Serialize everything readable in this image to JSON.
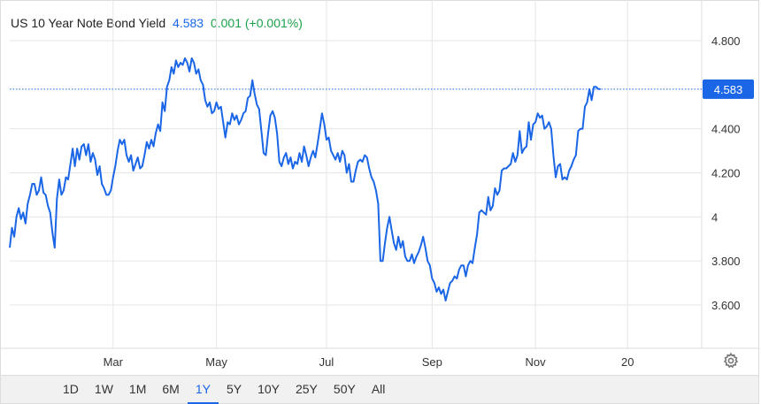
{
  "header": {
    "title": "US 10 Year Note Bond Yield",
    "last": "4.583",
    "change": "0.001 (+0.001%)"
  },
  "colors": {
    "line": "#1a66e6",
    "change_positive": "#1aa14a",
    "grid": "#e6e6e6",
    "badge": "#1a66e6"
  },
  "range_buttons": [
    {
      "label": "1D",
      "active": false
    },
    {
      "label": "1W",
      "active": false
    },
    {
      "label": "1M",
      "active": false
    },
    {
      "label": "6M",
      "active": false
    },
    {
      "label": "1Y",
      "active": true
    },
    {
      "label": "5Y",
      "active": false
    },
    {
      "label": "10Y",
      "active": false
    },
    {
      "label": "25Y",
      "active": false
    },
    {
      "label": "50Y",
      "active": false
    },
    {
      "label": "All",
      "active": false
    }
  ],
  "settings_icon": "gear-icon",
  "chart_data": {
    "type": "line",
    "title": "US 10 Year Note Bond Yield",
    "xlabel": "",
    "ylabel": "",
    "ylim": [
      3.4,
      4.8
    ],
    "xlim": [
      0,
      308
    ],
    "grid": true,
    "last_value_label": "4.583",
    "y_ticks": [
      {
        "value": 3.6,
        "label": "3.600"
      },
      {
        "value": 3.8,
        "label": "3.800"
      },
      {
        "value": 4.0,
        "label": "4"
      },
      {
        "value": 4.2,
        "label": "4.200"
      },
      {
        "value": 4.4,
        "label": "4.400"
      },
      {
        "value": 4.8,
        "label": "4.800"
      }
    ],
    "x_ticks": [
      {
        "x": 46,
        "label": "Mar"
      },
      {
        "x": 92,
        "label": "May"
      },
      {
        "x": 141,
        "label": "Jul"
      },
      {
        "x": 188,
        "label": "Sep"
      },
      {
        "x": 234,
        "label": "Nov"
      },
      {
        "x": 275,
        "label": "20"
      }
    ],
    "series": [
      {
        "values": [
          [
            0,
            3.86
          ],
          [
            1,
            3.95
          ],
          [
            2,
            3.91
          ],
          [
            3,
            4.0
          ],
          [
            4,
            4.04
          ],
          [
            5,
            3.99
          ],
          [
            6,
            4.02
          ],
          [
            7,
            3.97
          ],
          [
            8,
            4.06
          ],
          [
            9,
            4.1
          ],
          [
            10,
            4.15
          ],
          [
            11,
            4.15
          ],
          [
            12,
            4.1
          ],
          [
            13,
            4.12
          ],
          [
            14,
            4.18
          ],
          [
            15,
            4.11
          ],
          [
            16,
            4.1
          ],
          [
            17,
            4.05
          ],
          [
            18,
            4.02
          ],
          [
            19,
            3.93
          ],
          [
            20,
            3.86
          ],
          [
            21,
            4.08
          ],
          [
            22,
            4.17
          ],
          [
            23,
            4.1
          ],
          [
            24,
            4.12
          ],
          [
            25,
            4.18
          ],
          [
            26,
            4.17
          ],
          [
            27,
            4.24
          ],
          [
            28,
            4.31
          ],
          [
            29,
            4.23
          ],
          [
            30,
            4.31
          ],
          [
            31,
            4.26
          ],
          [
            32,
            4.32
          ],
          [
            33,
            4.33
          ],
          [
            34,
            4.28
          ],
          [
            35,
            4.33
          ],
          [
            36,
            4.25
          ],
          [
            37,
            4.29
          ],
          [
            38,
            4.26
          ],
          [
            39,
            4.19
          ],
          [
            40,
            4.23
          ],
          [
            41,
            4.15
          ],
          [
            42,
            4.13
          ],
          [
            43,
            4.1
          ],
          [
            44,
            4.1
          ],
          [
            45,
            4.12
          ],
          [
            46,
            4.18
          ],
          [
            47,
            4.23
          ],
          [
            48,
            4.3
          ],
          [
            49,
            4.35
          ],
          [
            50,
            4.33
          ],
          [
            51,
            4.35
          ],
          [
            52,
            4.28
          ],
          [
            53,
            4.25
          ],
          [
            54,
            4.28
          ],
          [
            55,
            4.21
          ],
          [
            56,
            4.24
          ],
          [
            57,
            4.27
          ],
          [
            58,
            4.22
          ],
          [
            59,
            4.23
          ],
          [
            60,
            4.28
          ],
          [
            61,
            4.34
          ],
          [
            62,
            4.31
          ],
          [
            63,
            4.35
          ],
          [
            64,
            4.32
          ],
          [
            65,
            4.38
          ],
          [
            66,
            4.42
          ],
          [
            67,
            4.39
          ],
          [
            68,
            4.52
          ],
          [
            69,
            4.48
          ],
          [
            70,
            4.59
          ],
          [
            71,
            4.62
          ],
          [
            72,
            4.68
          ],
          [
            73,
            4.65
          ],
          [
            74,
            4.71
          ],
          [
            75,
            4.68
          ],
          [
            76,
            4.7
          ],
          [
            77,
            4.69
          ],
          [
            78,
            4.72
          ],
          [
            79,
            4.7
          ],
          [
            80,
            4.66
          ],
          [
            81,
            4.72
          ],
          [
            82,
            4.7
          ],
          [
            83,
            4.65
          ],
          [
            84,
            4.67
          ],
          [
            85,
            4.62
          ],
          [
            86,
            4.6
          ],
          [
            87,
            4.53
          ],
          [
            88,
            4.5
          ],
          [
            89,
            4.52
          ],
          [
            90,
            4.47
          ],
          [
            91,
            4.48
          ],
          [
            92,
            4.52
          ],
          [
            93,
            4.49
          ],
          [
            94,
            4.5
          ],
          [
            95,
            4.43
          ],
          [
            96,
            4.36
          ],
          [
            97,
            4.43
          ],
          [
            98,
            4.42
          ],
          [
            99,
            4.47
          ],
          [
            100,
            4.44
          ],
          [
            101,
            4.46
          ],
          [
            102,
            4.42
          ],
          [
            103,
            4.44
          ],
          [
            104,
            4.47
          ],
          [
            105,
            4.48
          ],
          [
            106,
            4.54
          ],
          [
            107,
            4.55
          ],
          [
            108,
            4.62
          ],
          [
            109,
            4.56
          ],
          [
            110,
            4.51
          ],
          [
            111,
            4.49
          ],
          [
            112,
            4.39
          ],
          [
            113,
            4.29
          ],
          [
            114,
            4.28
          ],
          [
            115,
            4.38
          ],
          [
            116,
            4.46
          ],
          [
            117,
            4.48
          ],
          [
            118,
            4.45
          ],
          [
            119,
            4.38
          ],
          [
            120,
            4.25
          ],
          [
            121,
            4.23
          ],
          [
            122,
            4.27
          ],
          [
            123,
            4.29
          ],
          [
            124,
            4.24
          ],
          [
            125,
            4.27
          ],
          [
            126,
            4.22
          ],
          [
            127,
            4.25
          ],
          [
            128,
            4.24
          ],
          [
            129,
            4.29
          ],
          [
            130,
            4.25
          ],
          [
            131,
            4.32
          ],
          [
            132,
            4.28
          ],
          [
            133,
            4.23
          ],
          [
            134,
            4.27
          ],
          [
            135,
            4.3
          ],
          [
            136,
            4.27
          ],
          [
            137,
            4.33
          ],
          [
            138,
            4.4
          ],
          [
            139,
            4.47
          ],
          [
            140,
            4.42
          ],
          [
            141,
            4.35
          ],
          [
            142,
            4.36
          ],
          [
            143,
            4.3
          ],
          [
            144,
            4.28
          ],
          [
            145,
            4.26
          ],
          [
            146,
            4.29
          ],
          [
            147,
            4.25
          ],
          [
            148,
            4.3
          ],
          [
            149,
            4.28
          ],
          [
            150,
            4.2
          ],
          [
            151,
            4.24
          ],
          [
            152,
            4.16
          ],
          [
            153,
            4.16
          ],
          [
            154,
            4.21
          ],
          [
            155,
            4.25
          ],
          [
            156,
            4.26
          ],
          [
            157,
            4.25
          ],
          [
            158,
            4.28
          ],
          [
            159,
            4.27
          ],
          [
            160,
            4.22
          ],
          [
            161,
            4.18
          ],
          [
            162,
            4.16
          ],
          [
            163,
            4.12
          ],
          [
            164,
            4.06
          ],
          [
            165,
            3.8
          ],
          [
            166,
            3.8
          ],
          [
            167,
            3.88
          ],
          [
            168,
            3.95
          ],
          [
            169,
            4.0
          ],
          [
            170,
            3.94
          ],
          [
            171,
            3.88
          ],
          [
            172,
            3.85
          ],
          [
            173,
            3.91
          ],
          [
            174,
            3.86
          ],
          [
            175,
            3.89
          ],
          [
            176,
            3.82
          ],
          [
            177,
            3.8
          ],
          [
            178,
            3.8
          ],
          [
            179,
            3.83
          ],
          [
            180,
            3.79
          ],
          [
            181,
            3.82
          ],
          [
            182,
            3.84
          ],
          [
            183,
            3.87
          ],
          [
            184,
            3.91
          ],
          [
            185,
            3.86
          ],
          [
            186,
            3.8
          ],
          [
            187,
            3.78
          ],
          [
            188,
            3.72
          ],
          [
            189,
            3.7
          ],
          [
            190,
            3.66
          ],
          [
            191,
            3.68
          ],
          [
            192,
            3.65
          ],
          [
            193,
            3.67
          ],
          [
            194,
            3.62
          ],
          [
            195,
            3.66
          ],
          [
            196,
            3.7
          ],
          [
            197,
            3.71
          ],
          [
            198,
            3.73
          ],
          [
            199,
            3.72
          ],
          [
            200,
            3.76
          ],
          [
            201,
            3.78
          ],
          [
            202,
            3.78
          ],
          [
            203,
            3.73
          ],
          [
            204,
            3.78
          ],
          [
            205,
            3.8
          ],
          [
            206,
            3.79
          ],
          [
            207,
            3.86
          ],
          [
            208,
            3.92
          ],
          [
            209,
            4.02
          ],
          [
            210,
            4.03
          ],
          [
            211,
            4.02
          ],
          [
            212,
            4.01
          ],
          [
            213,
            4.09
          ],
          [
            214,
            4.03
          ],
          [
            215,
            4.05
          ],
          [
            216,
            4.13
          ],
          [
            217,
            4.1
          ],
          [
            218,
            4.12
          ],
          [
            219,
            4.21
          ],
          [
            220,
            4.22
          ],
          [
            221,
            4.22
          ],
          [
            222,
            4.23
          ],
          [
            223,
            4.24
          ],
          [
            224,
            4.29
          ],
          [
            225,
            4.25
          ],
          [
            226,
            4.28
          ],
          [
            227,
            4.39
          ],
          [
            228,
            4.29
          ],
          [
            229,
            4.31
          ],
          [
            230,
            4.32
          ],
          [
            231,
            4.43
          ],
          [
            232,
            4.35
          ],
          [
            233,
            4.42
          ],
          [
            234,
            4.43
          ],
          [
            235,
            4.47
          ],
          [
            236,
            4.45
          ],
          [
            237,
            4.46
          ],
          [
            238,
            4.4
          ],
          [
            239,
            4.41
          ],
          [
            240,
            4.43
          ],
          [
            241,
            4.4
          ],
          [
            242,
            4.28
          ],
          [
            243,
            4.18
          ],
          [
            244,
            4.23
          ],
          [
            245,
            4.24
          ],
          [
            246,
            4.17
          ],
          [
            247,
            4.18
          ],
          [
            248,
            4.17
          ],
          [
            249,
            4.21
          ],
          [
            250,
            4.23
          ],
          [
            251,
            4.26
          ],
          [
            252,
            4.28
          ],
          [
            253,
            4.39
          ],
          [
            254,
            4.4
          ],
          [
            255,
            4.4
          ],
          [
            256,
            4.5
          ],
          [
            257,
            4.52
          ],
          [
            258,
            4.58
          ],
          [
            259,
            4.53
          ],
          [
            260,
            4.59
          ],
          [
            261,
            4.59
          ],
          [
            262,
            4.58
          ],
          [
            263,
            4.58
          ]
        ]
      }
    ]
  }
}
